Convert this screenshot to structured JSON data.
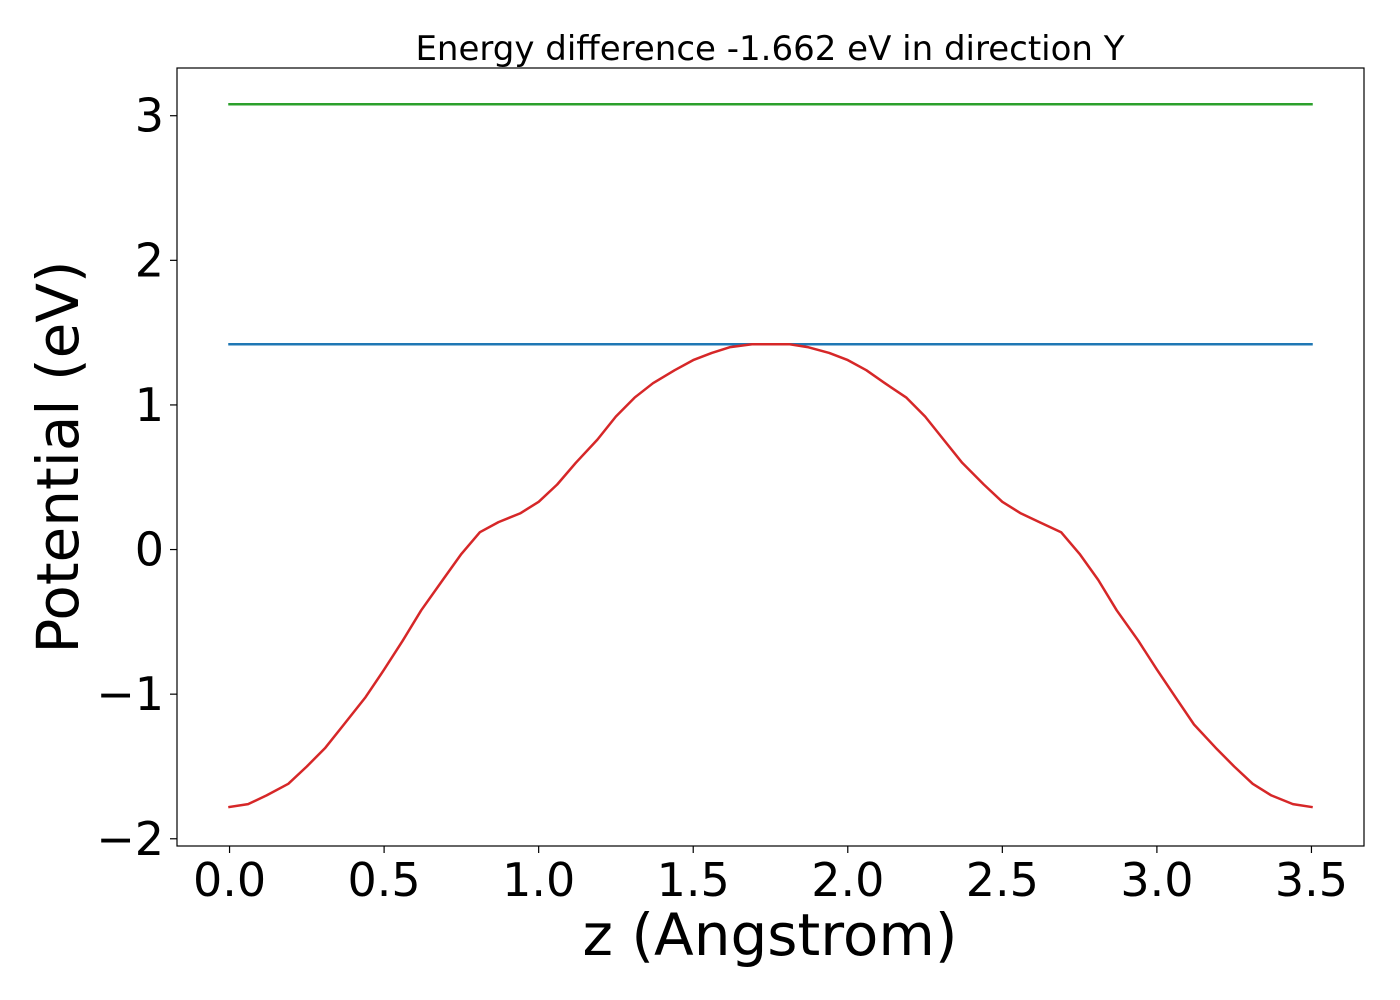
{
  "chart_data": {
    "type": "line",
    "title": "Energy difference -1.662 eV in direction Y",
    "xlabel": "z (Angstrom)",
    "ylabel": "Potential (eV)",
    "xlim": [
      -0.17,
      3.67
    ],
    "ylim": [
      -2.05,
      3.33
    ],
    "xticks": [
      0.0,
      0.5,
      1.0,
      1.5,
      2.0,
      2.5,
      3.0,
      3.5
    ],
    "xtick_labels": [
      "0.0",
      "0.5",
      "1.0",
      "1.5",
      "2.0",
      "2.5",
      "3.0",
      "3.5"
    ],
    "yticks": [
      -2,
      -1,
      0,
      1,
      2,
      3
    ],
    "ytick_labels": [
      "−2",
      "−1",
      "0",
      "1",
      "2",
      "3"
    ],
    "grid": false,
    "series": [
      {
        "color": "#2ca02c",
        "x": [
          0.0,
          3.5
        ],
        "y": [
          3.08,
          3.08
        ]
      },
      {
        "color": "#1f77b4",
        "x": [
          0.0,
          3.5
        ],
        "y": [
          1.42,
          1.42
        ]
      },
      {
        "color": "#d62728",
        "x": [
          0.0,
          0.06,
          0.12,
          0.19,
          0.25,
          0.31,
          0.37,
          0.44,
          0.5,
          0.56,
          0.62,
          0.69,
          0.75,
          0.81,
          0.87,
          0.94,
          1.0,
          1.06,
          1.12,
          1.19,
          1.25,
          1.31,
          1.37,
          1.44,
          1.5,
          1.56,
          1.62,
          1.69,
          1.75,
          1.81,
          1.87,
          1.94,
          2.0,
          2.06,
          2.12,
          2.19,
          2.25,
          2.31,
          2.37,
          2.44,
          2.5,
          2.56,
          2.62,
          2.69,
          2.75,
          2.81,
          2.87,
          2.94,
          3.0,
          3.06,
          3.12,
          3.19,
          3.25,
          3.31,
          3.37,
          3.44,
          3.5
        ],
        "y": [
          -1.78,
          -1.76,
          -1.7,
          -1.62,
          -1.5,
          -1.37,
          -1.21,
          -1.02,
          -0.83,
          -0.63,
          -0.42,
          -0.21,
          -0.03,
          0.12,
          0.19,
          0.25,
          0.33,
          0.45,
          0.6,
          0.76,
          0.92,
          1.05,
          1.15,
          1.24,
          1.31,
          1.36,
          1.4,
          1.42,
          1.42,
          1.42,
          1.4,
          1.36,
          1.31,
          1.24,
          1.15,
          1.05,
          0.92,
          0.76,
          0.6,
          0.45,
          0.33,
          0.25,
          0.19,
          0.12,
          -0.03,
          -0.21,
          -0.42,
          -0.63,
          -0.83,
          -1.02,
          -1.21,
          -1.37,
          -1.5,
          -1.62,
          -1.7,
          -1.76,
          -1.78
        ]
      }
    ]
  }
}
